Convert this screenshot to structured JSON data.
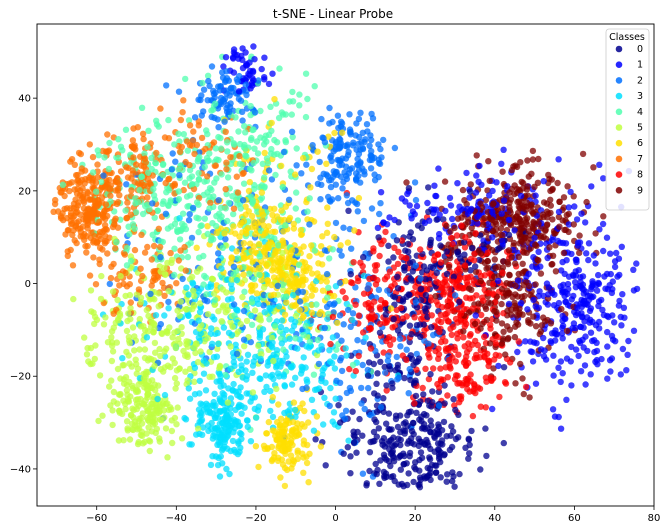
{
  "chart_data": {
    "type": "scatter",
    "title": "t-SNE - Linear Probe",
    "xlabel": "",
    "ylabel": "",
    "xlim": [
      -75,
      80
    ],
    "ylim": [
      -48,
      56
    ],
    "xticks": [
      -60,
      -40,
      -20,
      0,
      20,
      40,
      60,
      80
    ],
    "yticks": [
      -40,
      -20,
      0,
      20,
      40
    ],
    "grid": false,
    "legend": {
      "title": "Classes",
      "placement": "top-right",
      "entries": [
        "0",
        "1",
        "2",
        "3",
        "4",
        "5",
        "6",
        "7",
        "8",
        "9"
      ]
    },
    "colors": [
      "#00008f",
      "#0000ff",
      "#0070ff",
      "#00dfff",
      "#50ffaf",
      "#bfff40",
      "#ffdf00",
      "#ff7000",
      "#ff0000",
      "#800000"
    ],
    "point_count_per_class": 500,
    "series": [
      {
        "name": "0",
        "clusters": [
          {
            "center": [
              18,
              -35
            ],
            "spread": [
              8,
              6
            ],
            "weight": 0.55
          },
          {
            "center": [
              18,
              -8
            ],
            "spread": [
              6,
              12
            ],
            "weight": 0.3
          },
          {
            "center": [
              28,
              5
            ],
            "spread": [
              8,
              4
            ],
            "weight": 0.15
          }
        ]
      },
      {
        "name": "1",
        "clusters": [
          {
            "center": [
              60,
              -5
            ],
            "spread": [
              8,
              9
            ],
            "weight": 0.6
          },
          {
            "center": [
              45,
              15
            ],
            "spread": [
              10,
              6
            ],
            "weight": 0.2
          },
          {
            "center": [
              25,
              15
            ],
            "spread": [
              8,
              4
            ],
            "weight": 0.1
          },
          {
            "center": [
              -22,
              46
            ],
            "spread": [
              3,
              3
            ],
            "weight": 0.1
          }
        ]
      },
      {
        "name": "2",
        "clusters": [
          {
            "center": [
              3,
              28
            ],
            "spread": [
              5,
              5
            ],
            "weight": 0.3
          },
          {
            "center": [
              -28,
              40
            ],
            "spread": [
              4,
              3
            ],
            "weight": 0.15
          },
          {
            "center": [
              -20,
              5
            ],
            "spread": [
              18,
              15
            ],
            "weight": 0.35
          },
          {
            "center": [
              10,
              -15
            ],
            "spread": [
              8,
              10
            ],
            "weight": 0.2
          }
        ]
      },
      {
        "name": "3",
        "clusters": [
          {
            "center": [
              -28,
              -30
            ],
            "spread": [
              4,
              5
            ],
            "weight": 0.35
          },
          {
            "center": [
              -25,
              -10
            ],
            "spread": [
              12,
              8
            ],
            "weight": 0.45
          },
          {
            "center": [
              -10,
              -20
            ],
            "spread": [
              8,
              6
            ],
            "weight": 0.2
          }
        ]
      },
      {
        "name": "4",
        "clusters": [
          {
            "center": [
              -42,
              20
            ],
            "spread": [
              9,
              8
            ],
            "weight": 0.45
          },
          {
            "center": [
              -22,
              20
            ],
            "spread": [
              6,
              7
            ],
            "weight": 0.25
          },
          {
            "center": [
              -20,
              35
            ],
            "spread": [
              8,
              5
            ],
            "weight": 0.15
          },
          {
            "center": [
              -15,
              -5
            ],
            "spread": [
              10,
              8
            ],
            "weight": 0.15
          }
        ]
      },
      {
        "name": "5",
        "clusters": [
          {
            "center": [
              -48,
              -27
            ],
            "spread": [
              4,
              4
            ],
            "weight": 0.35
          },
          {
            "center": [
              -48,
              -10
            ],
            "spread": [
              8,
              7
            ],
            "weight": 0.35
          },
          {
            "center": [
              -28,
              -8
            ],
            "spread": [
              10,
              8
            ],
            "weight": 0.3
          }
        ]
      },
      {
        "name": "6",
        "clusters": [
          {
            "center": [
              -20,
              8
            ],
            "spread": [
              5,
              5
            ],
            "weight": 0.3
          },
          {
            "center": [
              -9,
              0
            ],
            "spread": [
              5,
              5
            ],
            "weight": 0.25
          },
          {
            "center": [
              -12,
              -34
            ],
            "spread": [
              3,
              4
            ],
            "weight": 0.25
          },
          {
            "center": [
              -14,
              15
            ],
            "spread": [
              8,
              10
            ],
            "weight": 0.2
          }
        ]
      },
      {
        "name": "7",
        "clusters": [
          {
            "center": [
              -62,
              15
            ],
            "spread": [
              4,
              5
            ],
            "weight": 0.45
          },
          {
            "center": [
              -53,
              23
            ],
            "spread": [
              5,
              5
            ],
            "weight": 0.25
          },
          {
            "center": [
              -48,
              2
            ],
            "spread": [
              6,
              5
            ],
            "weight": 0.15
          },
          {
            "center": [
              -35,
              28
            ],
            "spread": [
              8,
              6
            ],
            "weight": 0.15
          }
        ]
      },
      {
        "name": "8",
        "clusters": [
          {
            "center": [
              28,
              -2
            ],
            "spread": [
              8,
              7
            ],
            "weight": 0.55
          },
          {
            "center": [
              32,
              -18
            ],
            "spread": [
              7,
              5
            ],
            "weight": 0.25
          },
          {
            "center": [
              10,
              -5
            ],
            "spread": [
              6,
              7
            ],
            "weight": 0.2
          }
        ]
      },
      {
        "name": "9",
        "clusters": [
          {
            "center": [
              48,
              14
            ],
            "spread": [
              7,
              5
            ],
            "weight": 0.5
          },
          {
            "center": [
              44,
              -5
            ],
            "spread": [
              6,
              7
            ],
            "weight": 0.3
          },
          {
            "center": [
              35,
              10
            ],
            "spread": [
              6,
              6
            ],
            "weight": 0.2
          }
        ]
      }
    ]
  }
}
